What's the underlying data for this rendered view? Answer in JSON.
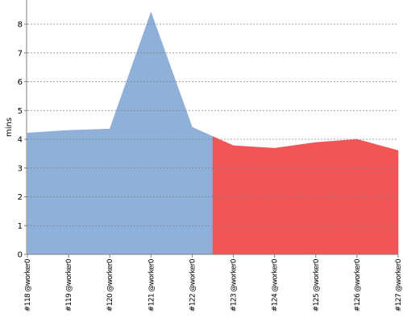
{
  "chart_data": {
    "type": "area",
    "y_label": "mins",
    "categories": [
      "#118 @worker0",
      "#119 @worker0",
      "#120 @worker0",
      "#121 @worker0",
      "#122 @worker0",
      "#123 @worker0",
      "#124 @worker0",
      "#125 @worker0",
      "#126 @worker0",
      "#127 @worker0"
    ],
    "values": [
      4.22,
      4.31,
      4.36,
      8.42,
      4.42,
      3.78,
      3.69,
      3.89,
      4.0,
      3.61
    ],
    "colors": [
      "#8fb0d9",
      "#8fb0d9",
      "#8fb0d9",
      "#8fb0d9",
      "#8fb0d9",
      "#f25555",
      "#f25555",
      "#f25555",
      "#f25555",
      "#f25555"
    ],
    "ylim": [
      0,
      8.84
    ],
    "yticks": [
      0,
      1,
      2,
      3,
      4,
      5,
      6,
      7,
      8
    ],
    "grid": true
  }
}
